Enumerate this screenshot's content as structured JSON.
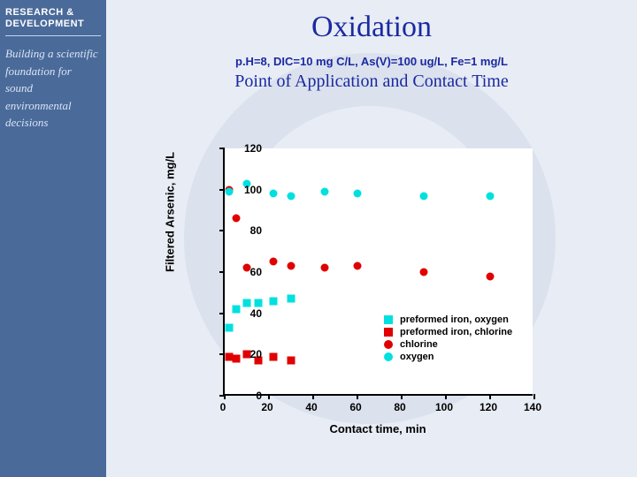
{
  "sidebar": {
    "header_line1": "RESEARCH &",
    "header_line2": "DEVELOPMENT",
    "tagline": "Building a scientific foundation for sound environmental decisions"
  },
  "title": "Oxidation",
  "conditions": "p.H=8, DIC=10 mg C/L, As(V)=100 ug/L, Fe=1 mg/L",
  "subtitle": "Point of Application and Contact Time",
  "chart": {
    "type": "scatter",
    "xlabel": "Contact time, min",
    "ylabel": "Filtered Arsenic, mg/L",
    "xlim": [
      0,
      140
    ],
    "ylim": [
      0,
      120
    ],
    "xtick_step": 20,
    "ytick_step": 20,
    "background_color": "#ffffff",
    "axis_color": "#000000",
    "label_fontsize": 13,
    "tick_fontsize": 12,
    "series": [
      {
        "name": "preformed iron, oxygen",
        "marker": "square",
        "color": "#00e0e0",
        "x": [
          2,
          5,
          10,
          15,
          22,
          30
        ],
        "y": [
          33,
          42,
          45,
          45,
          46,
          47
        ]
      },
      {
        "name": "preformed iron, chlorine",
        "marker": "square",
        "color": "#e00000",
        "x": [
          2,
          5,
          10,
          15,
          22,
          30
        ],
        "y": [
          19,
          18,
          20,
          17,
          19,
          17
        ]
      },
      {
        "name": "chlorine",
        "marker": "circle",
        "color": "#e00000",
        "x": [
          2,
          5,
          10,
          22,
          30,
          45,
          60,
          90,
          120
        ],
        "y": [
          100,
          86,
          62,
          65,
          63,
          62,
          63,
          60,
          58
        ]
      },
      {
        "name": "oxygen",
        "marker": "circle",
        "color": "#00e0e0",
        "x": [
          2,
          10,
          22,
          30,
          45,
          60,
          90,
          120
        ],
        "y": [
          99,
          103,
          98,
          97,
          99,
          98,
          97,
          97
        ]
      }
    ],
    "legend": {
      "items": [
        {
          "label": "preformed iron, oxygen",
          "marker": "square",
          "color": "#00e0e0"
        },
        {
          "label": "preformed iron, chlorine",
          "marker": "square",
          "color": "#e00000"
        },
        {
          "label": "chlorine",
          "marker": "circle",
          "color": "#e00000"
        },
        {
          "label": "oxygen",
          "marker": "circle",
          "color": "#00e0e0"
        }
      ]
    }
  }
}
